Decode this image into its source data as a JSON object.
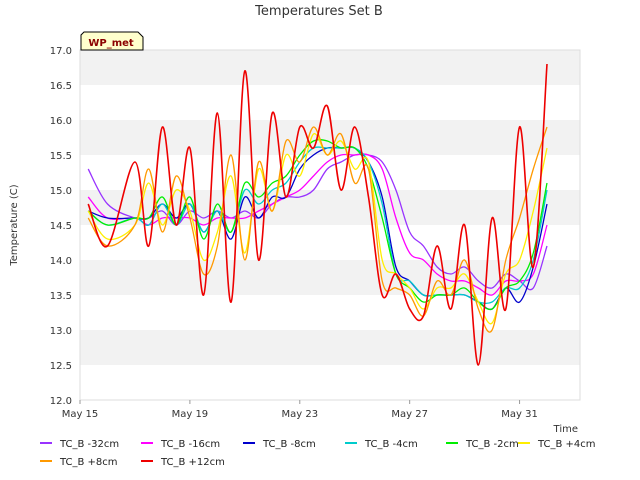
{
  "chart_data": {
    "type": "line",
    "title": "Temperatures Set B",
    "xlabel": "Time",
    "ylabel": "Temperature (C)",
    "ylim": [
      12.0,
      17.0
    ],
    "xlim": [
      0,
      18.2
    ],
    "x_unit": "days since May 15",
    "yticks": [
      "12.0",
      "12.5",
      "13.0",
      "13.5",
      "14.0",
      "14.5",
      "15.0",
      "15.5",
      "16.0",
      "16.5",
      "17.0"
    ],
    "xticks": [
      {
        "label": "May 15",
        "value": 0
      },
      {
        "label": "May 19",
        "value": 4
      },
      {
        "label": "May 23",
        "value": 8
      },
      {
        "label": "May 27",
        "value": 12
      },
      {
        "label": "May 31",
        "value": 16
      }
    ],
    "badge": "WP_met",
    "grid": "horizontal bands",
    "legend_position": "bottom",
    "x": [
      0.3,
      1.0,
      2.0,
      2.5,
      3.0,
      3.5,
      4.0,
      4.5,
      5.0,
      5.5,
      6.0,
      6.5,
      7.0,
      7.5,
      8.0,
      8.5,
      9.0,
      9.5,
      10.0,
      10.5,
      11.0,
      11.5,
      12.0,
      12.5,
      13.0,
      13.5,
      14.0,
      14.5,
      15.0,
      15.5,
      16.0,
      16.5,
      17.0
    ],
    "series": [
      {
        "name": "TC_B -32cm",
        "color": "#9933ff",
        "values": [
          15.3,
          14.8,
          14.6,
          14.6,
          14.7,
          14.5,
          14.7,
          14.6,
          14.7,
          14.6,
          14.7,
          14.6,
          14.8,
          14.9,
          14.9,
          15.0,
          15.3,
          15.4,
          15.5,
          15.5,
          15.4,
          15.0,
          14.4,
          14.2,
          13.9,
          13.8,
          13.9,
          13.7,
          13.6,
          13.8,
          13.7,
          13.6,
          14.2
        ]
      },
      {
        "name": "TC_B -16cm",
        "color": "#ff00ff",
        "values": [
          14.9,
          14.6,
          14.6,
          14.5,
          14.6,
          14.6,
          14.6,
          14.5,
          14.6,
          14.6,
          14.6,
          14.7,
          14.8,
          14.9,
          15.0,
          15.2,
          15.4,
          15.5,
          15.5,
          15.5,
          15.3,
          14.6,
          14.1,
          14.0,
          13.8,
          13.7,
          13.7,
          13.6,
          13.5,
          13.7,
          13.7,
          13.8,
          14.5
        ]
      },
      {
        "name": "TC_B -8cm",
        "color": "#0000cc",
        "values": [
          14.7,
          14.6,
          14.6,
          14.6,
          14.8,
          14.6,
          14.8,
          14.4,
          14.7,
          14.3,
          14.9,
          14.6,
          14.9,
          14.9,
          15.3,
          15.5,
          15.6,
          15.6,
          15.6,
          15.4,
          14.9,
          13.9,
          13.7,
          13.5,
          13.5,
          13.5,
          13.5,
          13.4,
          13.3,
          13.6,
          13.4,
          13.9,
          14.8
        ]
      },
      {
        "name": "TC_B -4cm",
        "color": "#00cccc",
        "values": [
          14.7,
          14.5,
          14.6,
          14.5,
          14.8,
          14.5,
          14.8,
          14.4,
          14.7,
          14.4,
          15.0,
          14.8,
          15.0,
          15.1,
          15.4,
          15.6,
          15.6,
          15.6,
          15.6,
          15.4,
          14.8,
          13.8,
          13.7,
          13.5,
          13.5,
          13.5,
          13.5,
          13.4,
          13.4,
          13.6,
          13.6,
          14.0,
          15.0
        ]
      },
      {
        "name": "TC_B -2cm",
        "color": "#00ee00",
        "values": [
          14.7,
          14.5,
          14.6,
          14.6,
          14.9,
          14.5,
          14.9,
          14.3,
          14.8,
          14.4,
          15.1,
          14.9,
          15.1,
          15.2,
          15.5,
          15.7,
          15.7,
          15.6,
          15.6,
          15.3,
          14.6,
          13.8,
          13.6,
          13.4,
          13.5,
          13.5,
          13.6,
          13.4,
          13.3,
          13.6,
          13.7,
          14.1,
          15.1
        ]
      },
      {
        "name": "TC_B +4cm",
        "color": "#ffee00",
        "values": [
          14.7,
          14.3,
          14.5,
          15.1,
          14.5,
          15.0,
          14.7,
          14.0,
          14.4,
          15.2,
          14.1,
          15.3,
          14.7,
          15.5,
          15.2,
          15.8,
          15.5,
          15.7,
          15.3,
          15.4,
          14.0,
          13.8,
          13.6,
          13.3,
          13.6,
          13.6,
          13.8,
          13.4,
          13.1,
          13.8,
          14.0,
          14.7,
          15.6
        ]
      },
      {
        "name": "TC_B +8cm",
        "color": "#ff9900",
        "values": [
          14.6,
          14.2,
          14.5,
          15.3,
          14.4,
          15.2,
          14.6,
          13.8,
          14.2,
          15.5,
          14.0,
          15.4,
          14.7,
          15.7,
          15.4,
          15.9,
          15.5,
          15.8,
          15.1,
          15.3,
          13.7,
          13.6,
          13.5,
          13.2,
          13.7,
          13.5,
          14.0,
          13.3,
          13.0,
          14.0,
          14.6,
          15.3,
          15.9
        ]
      },
      {
        "name": "TC_B +12cm",
        "color": "#ee0000",
        "values": [
          14.8,
          14.2,
          15.4,
          14.2,
          15.9,
          14.5,
          15.6,
          13.5,
          16.1,
          13.4,
          16.7,
          14.0,
          16.1,
          14.9,
          15.9,
          15.6,
          16.2,
          15.0,
          15.9,
          14.9,
          13.5,
          13.8,
          13.3,
          13.2,
          14.2,
          13.3,
          14.5,
          12.5,
          14.6,
          13.3,
          15.9,
          13.9,
          16.8
        ]
      }
    ]
  }
}
